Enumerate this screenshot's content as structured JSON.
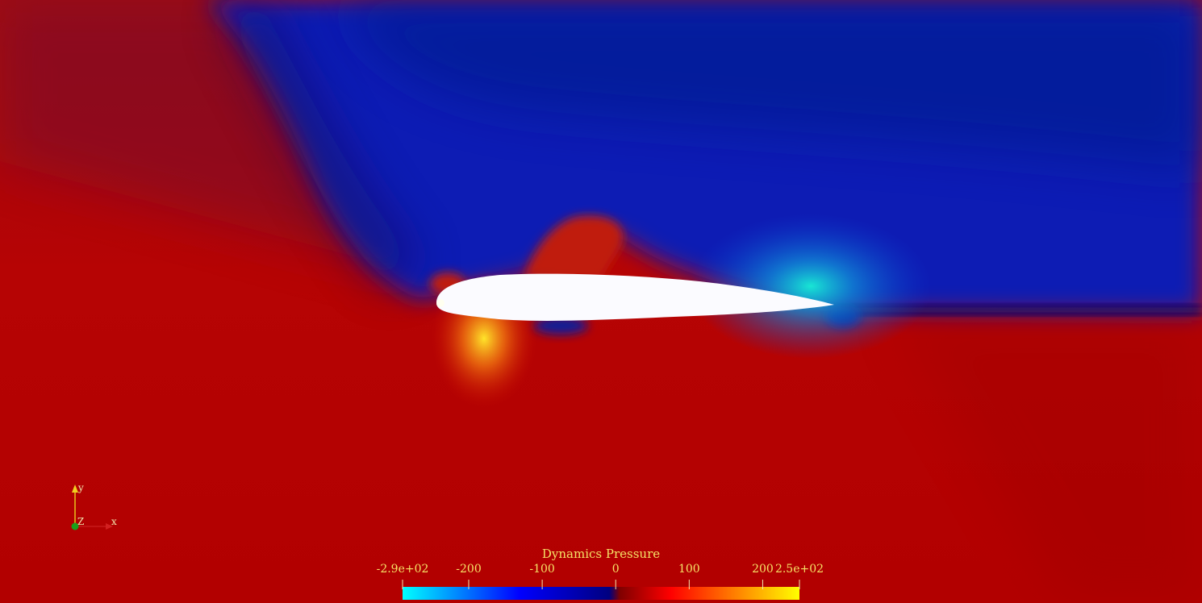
{
  "legend": {
    "title": "Dynamics Pressure",
    "range": [
      -290,
      250
    ],
    "ticks": [
      {
        "label": "-2.9e+02",
        "value": -290
      },
      {
        "label": "-200",
        "value": -200
      },
      {
        "label": "-100",
        "value": -100
      },
      {
        "label": "0",
        "value": 0
      },
      {
        "label": "100",
        "value": 100
      },
      {
        "label": "200",
        "value": 200
      },
      {
        "label": "2.5e+02",
        "value": 250
      }
    ],
    "colormap": [
      "#00ffff",
      "#0000ff",
      "#000080",
      "#800000",
      "#ff0000",
      "#ffff00"
    ]
  },
  "orientation_axes": {
    "x": "x",
    "y": "y",
    "z": "Z"
  },
  "colors": {
    "high_pressure": "#b50000",
    "low_pressure": "#0a1fb8",
    "airfoil": "#fbfbff",
    "label": "#f5e266"
  }
}
